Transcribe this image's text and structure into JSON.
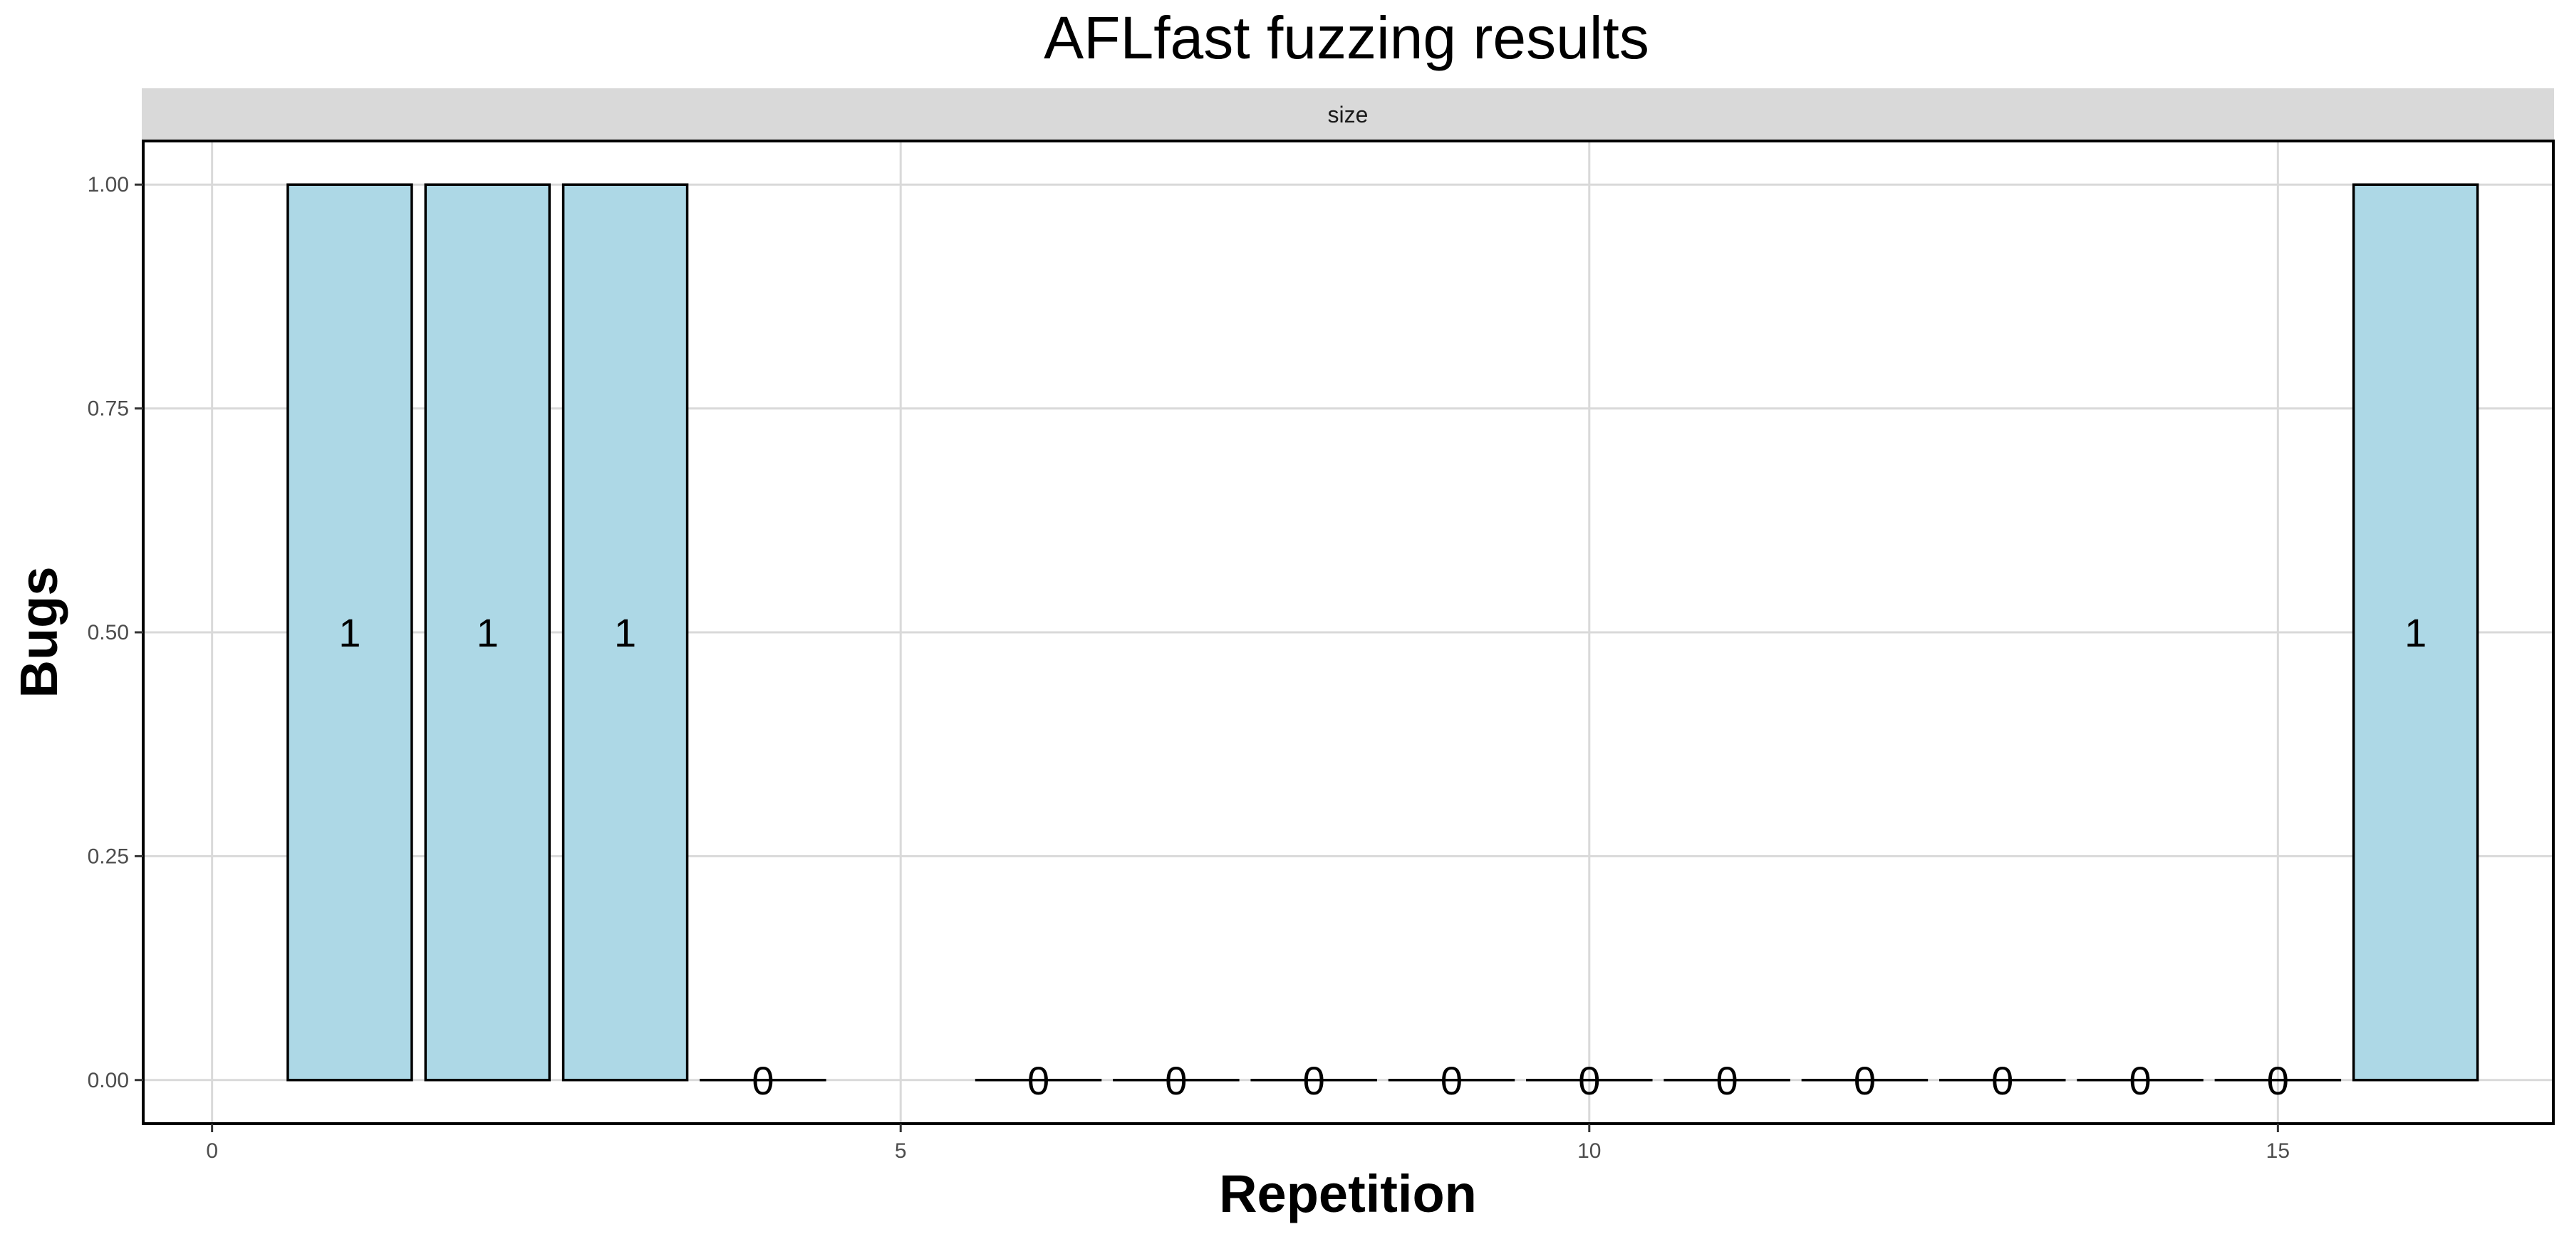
{
  "chart_data": {
    "type": "bar",
    "title": "AFLfast fuzzing results",
    "facet_label": "size",
    "xlabel": "Repetition",
    "ylabel": "Bugs",
    "x": [
      1,
      2,
      3,
      4,
      6,
      7,
      8,
      9,
      10,
      11,
      12,
      13,
      14,
      15,
      16
    ],
    "values": [
      1,
      1,
      1,
      0,
      0,
      0,
      0,
      0,
      0,
      0,
      0,
      0,
      0,
      0,
      1
    ],
    "data_labels": [
      "1",
      "1",
      "1",
      "0",
      "0",
      "0",
      "0",
      "0",
      "0",
      "0",
      "0",
      "0",
      "0",
      "0",
      "1"
    ],
    "xlim": [
      -0.5,
      17.0
    ],
    "ylim": [
      -0.0487,
      1.0487
    ],
    "x_ticks": [
      0,
      5,
      10,
      15
    ],
    "x_tick_labels": [
      "0",
      "5",
      "10",
      "15"
    ],
    "y_ticks": [
      0,
      0.25,
      0.5,
      0.75,
      1
    ],
    "y_tick_labels": [
      "0.00",
      "0.25",
      "0.50",
      "0.75",
      "1.00"
    ],
    "grid": true,
    "legend": "none",
    "colors": {
      "bar_fill": "#add8e6",
      "bar_stroke": "#000000",
      "strip_fill": "#d9d9d9",
      "grid": "#d9d9d9",
      "panel_border": "#000000"
    }
  }
}
